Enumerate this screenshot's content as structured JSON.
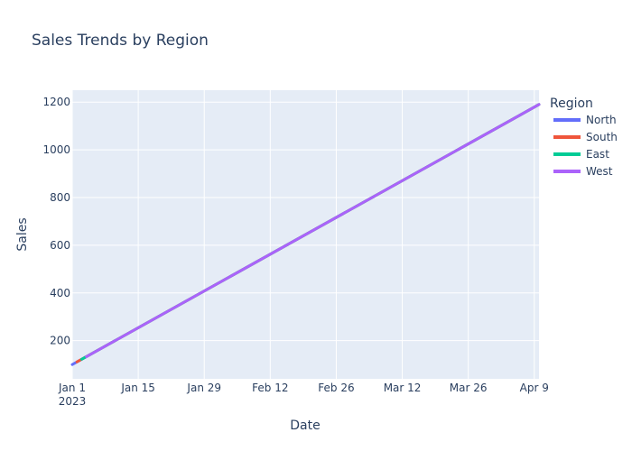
{
  "chart_data": {
    "type": "line",
    "title": "Sales Trends by Region",
    "xlabel": "Date",
    "ylabel": "Sales",
    "xlim": [
      "2023-01-01",
      "2023-04-10"
    ],
    "ylim": [
      40,
      1250
    ],
    "x_ticks": [
      {
        "date": "2023-01-01",
        "label": "Jan 1",
        "sublabel": "2023"
      },
      {
        "date": "2023-01-15",
        "label": "Jan 15"
      },
      {
        "date": "2023-01-29",
        "label": "Jan 29"
      },
      {
        "date": "2023-02-12",
        "label": "Feb 12"
      },
      {
        "date": "2023-02-26",
        "label": "Feb 26"
      },
      {
        "date": "2023-03-12",
        "label": "Mar 12"
      },
      {
        "date": "2023-03-26",
        "label": "Mar 26"
      },
      {
        "date": "2023-04-09",
        "label": "Apr 9"
      }
    ],
    "y_ticks": [
      200,
      400,
      600,
      800,
      1000,
      1200
    ],
    "grid": true,
    "legend": {
      "title": "Region",
      "placement": "right"
    },
    "series": [
      {
        "name": "North",
        "color": "#636efa",
        "x": [
          "2023-01-01",
          "2023-04-10"
        ],
        "y": [
          100,
          1190
        ]
      },
      {
        "name": "South",
        "color": "#ef553b",
        "x": [
          "2023-01-02",
          "2023-04-10"
        ],
        "y": [
          111,
          1190
        ]
      },
      {
        "name": "East",
        "color": "#00cc96",
        "x": [
          "2023-01-03",
          "2023-04-10"
        ],
        "y": [
          122,
          1190
        ]
      },
      {
        "name": "West",
        "color": "#ab63fa",
        "x": [
          "2023-01-04",
          "2023-04-10"
        ],
        "y": [
          133,
          1190
        ]
      }
    ]
  }
}
